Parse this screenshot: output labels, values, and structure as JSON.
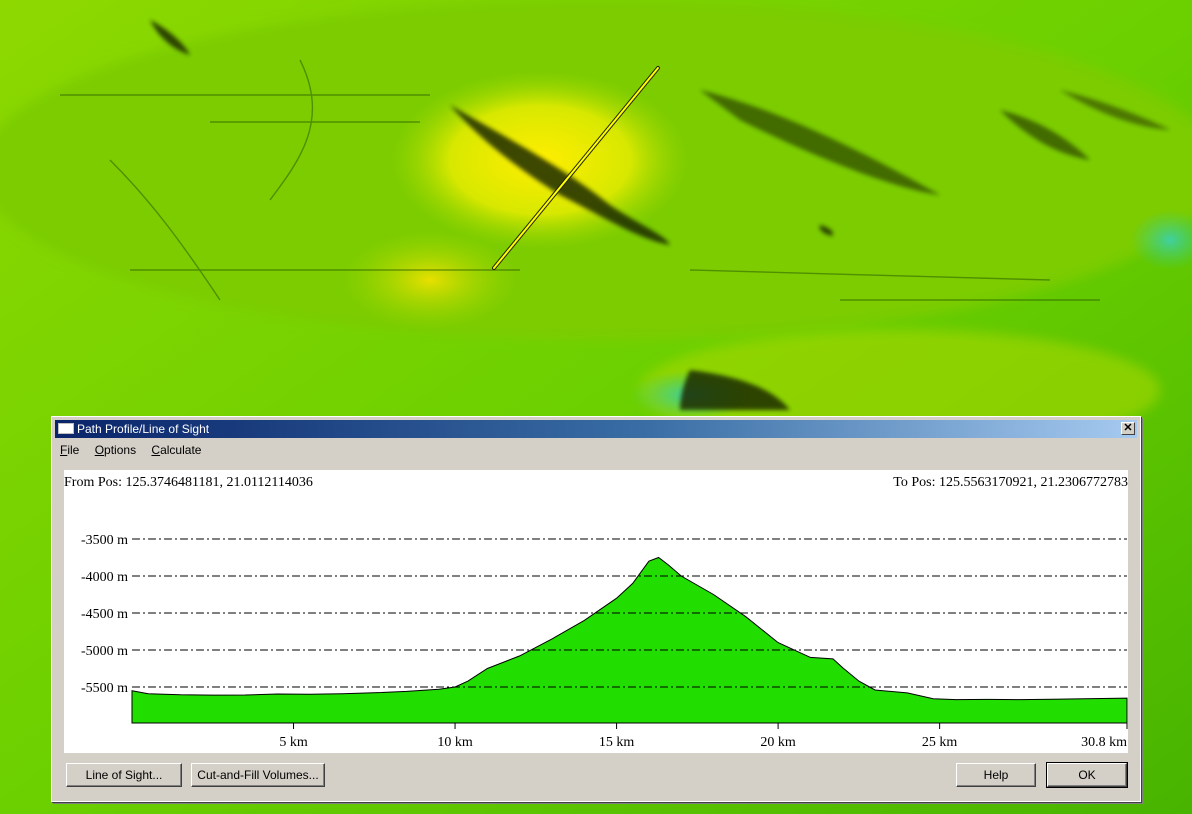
{
  "window": {
    "title": "Path Profile/Line of Sight",
    "menu": [
      "File",
      "Options",
      "Calculate"
    ],
    "from_pos": "From Pos: 125.3746481181, 21.0112114036",
    "to_pos": "To Pos: 125.5563170921, 21.2306772783"
  },
  "buttons": {
    "line_of_sight": "Line of Sight...",
    "cut_fill": "Cut-and-Fill Volumes...",
    "help": "Help",
    "ok": "OK"
  },
  "colors": {
    "profile_fill": "#22dd00",
    "title_bar": "#0a246a",
    "dialog_bg": "#d4d0c8",
    "profile_line": "#ffff00"
  },
  "chart_data": {
    "type": "area",
    "x_ticks": [
      "5 km",
      "10 km",
      "15 km",
      "20 km",
      "25 km",
      "30.8 km"
    ],
    "x_tick_values": [
      5,
      10,
      15,
      20,
      25,
      30.8
    ],
    "y_ticks": [
      "-3500 m",
      "-4000 m",
      "-4500 m",
      "-5000 m",
      "-5500 m"
    ],
    "y_tick_values": [
      -3500,
      -4000,
      -4500,
      -5000,
      -5500
    ],
    "xlim": [
      0,
      30.8
    ],
    "ylim": [
      -6000,
      -3000
    ],
    "grid": "dash-dot horizontal",
    "x": [
      0,
      0.5,
      1.5,
      2.5,
      3.5,
      4.5,
      5.5,
      6.5,
      7.5,
      8.5,
      9.5,
      10,
      10.4,
      11,
      12,
      13,
      14,
      15,
      15.5,
      16,
      16.3,
      16.6,
      17,
      18,
      19,
      20,
      21,
      21.7,
      22,
      22.5,
      23,
      24,
      24.8,
      25.5,
      26.5,
      27.5,
      28.5,
      29.5,
      30.8
    ],
    "y": [
      -5550,
      -5590,
      -5605,
      -5610,
      -5608,
      -5595,
      -5598,
      -5590,
      -5578,
      -5560,
      -5530,
      -5500,
      -5420,
      -5250,
      -5080,
      -4850,
      -4600,
      -4300,
      -4100,
      -3800,
      -3750,
      -3850,
      -4000,
      -4250,
      -4550,
      -4900,
      -5100,
      -5120,
      -5240,
      -5420,
      -5540,
      -5580,
      -5660,
      -5670,
      -5668,
      -5670,
      -5665,
      -5660,
      -5650
    ]
  }
}
